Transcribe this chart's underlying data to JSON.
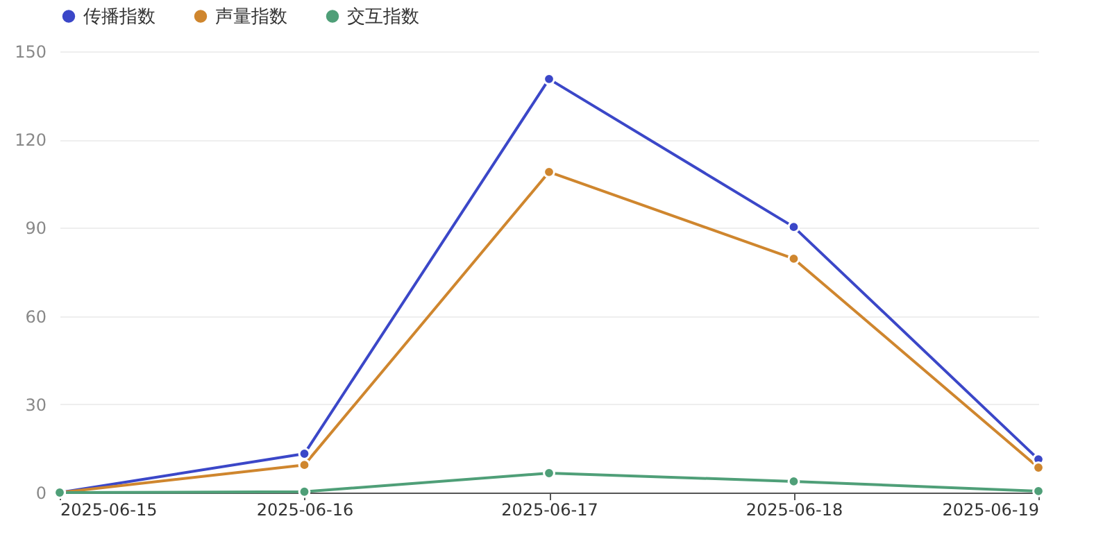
{
  "chart_data": {
    "type": "line",
    "categories": [
      "2025-06-15",
      "2025-06-16",
      "2025-06-17",
      "2025-06-18",
      "2025-06-19"
    ],
    "series": [
      {
        "name": "传播指数",
        "color": "#3b47c8",
        "values": [
          0,
          13.2,
          140.6,
          90.3,
          11.3
        ]
      },
      {
        "name": "声量指数",
        "color": "#cf862e",
        "values": [
          0,
          9.4,
          109,
          79.5,
          8.5
        ]
      },
      {
        "name": "交互指数",
        "color": "#4f9f78",
        "values": [
          0,
          0.3,
          6.6,
          3.8,
          0.5
        ]
      }
    ],
    "ylim": [
      0,
      150
    ],
    "yticks": [
      0,
      30,
      60,
      90,
      120,
      150
    ],
    "grid": "y",
    "legend": "top",
    "marker": "circle",
    "line_style": "solid"
  }
}
